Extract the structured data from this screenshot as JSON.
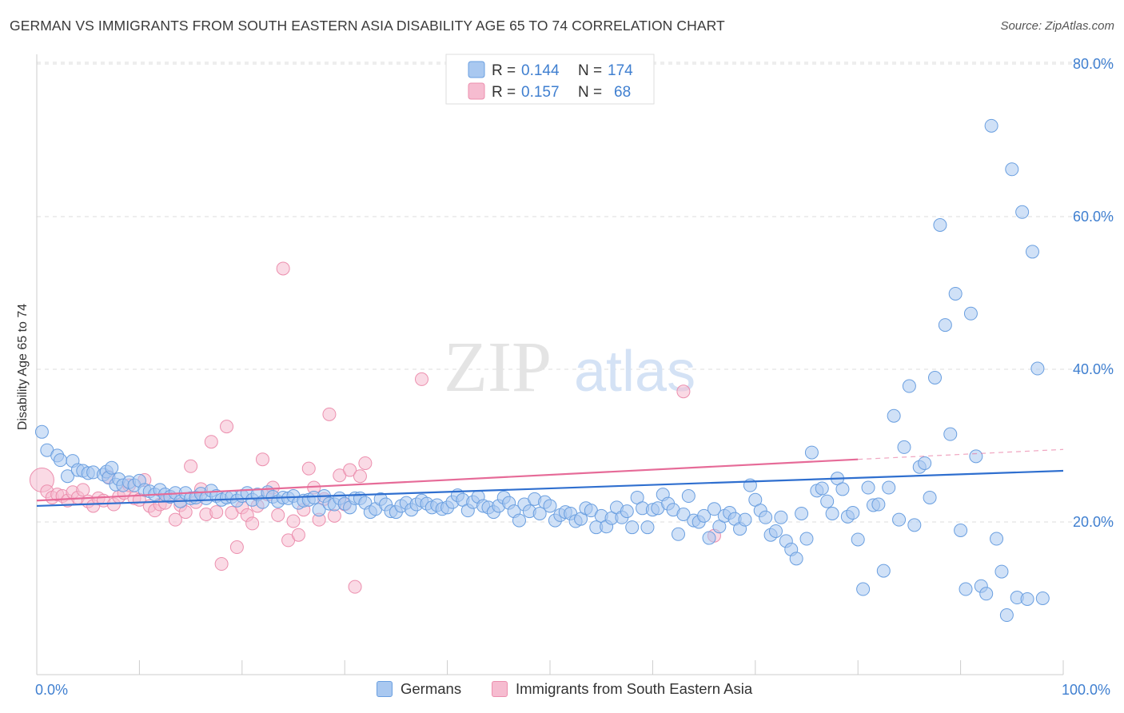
{
  "title": "GERMAN VS IMMIGRANTS FROM SOUTH EASTERN ASIA DISABILITY AGE 65 TO 74 CORRELATION CHART",
  "source": "Source: ZipAtlas.com",
  "watermark": {
    "zip": "ZIP",
    "atlas": "atlas"
  },
  "colors": {
    "blue_fill": "#a9c8f0",
    "blue_stroke": "#6a9fe0",
    "blue_line": "#2f6fcf",
    "pink_fill": "#f6bcd0",
    "pink_stroke": "#ec8fae",
    "pink_line": "#e66b98",
    "axis_label": "#3f7fd0",
    "grid": "#dddddd"
  },
  "legend": {
    "rows": [
      {
        "r_label": "R =",
        "r_value": "0.144",
        "n_label": "N =",
        "n_value": "174"
      },
      {
        "r_label": "R =",
        "r_value": "0.157",
        "n_label": "N =",
        "n_value": "68"
      }
    ]
  },
  "chart_data": {
    "type": "scatter",
    "title": "GERMAN VS IMMIGRANTS FROM SOUTH EASTERN ASIA DISABILITY AGE 65 TO 74 CORRELATION CHART",
    "xlabel": "",
    "ylabel": "Disability Age 65 to 74",
    "xlim": [
      0,
      100
    ],
    "ylim": [
      0,
      80
    ],
    "x_tick_labels": [
      "0.0%",
      "100.0%"
    ],
    "y_ticks": [
      20,
      40,
      60,
      80
    ],
    "y_tick_labels": [
      "20.0%",
      "40.0%",
      "60.0%",
      "80.0%"
    ],
    "grid": true,
    "legend_position": "top-center",
    "series": [
      {
        "name": "Germans",
        "r": 0.144,
        "n": 174,
        "trend": {
          "x": [
            0,
            100
          ],
          "y": [
            22.1,
            26.7
          ]
        },
        "points": [
          [
            0.5,
            31.8
          ],
          [
            1,
            29.4
          ],
          [
            2,
            28.7
          ],
          [
            2.3,
            28.1
          ],
          [
            3,
            26
          ],
          [
            3.5,
            28
          ],
          [
            4,
            26.8
          ],
          [
            4.5,
            26.7
          ],
          [
            5,
            26.4
          ],
          [
            5.5,
            26.5
          ],
          [
            6.5,
            26.2
          ],
          [
            6.8,
            26.6
          ],
          [
            7,
            25.8
          ],
          [
            7.3,
            27.1
          ],
          [
            7.7,
            24.9
          ],
          [
            8,
            25.6
          ],
          [
            8.4,
            24.8
          ],
          [
            9,
            25.2
          ],
          [
            9.5,
            24.8
          ],
          [
            10,
            25.4
          ],
          [
            10.5,
            24.2
          ],
          [
            11,
            24
          ],
          [
            11.5,
            23.6
          ],
          [
            12,
            24.2
          ],
          [
            12.5,
            23.6
          ],
          [
            13,
            23.3
          ],
          [
            13.5,
            23.8
          ],
          [
            14,
            22.7
          ],
          [
            14.5,
            23.8
          ],
          [
            15,
            23.1
          ],
          [
            15.5,
            23.2
          ],
          [
            16,
            23.7
          ],
          [
            16.5,
            23.1
          ],
          [
            17,
            24.1
          ],
          [
            17.5,
            23.4
          ],
          [
            18,
            22.9
          ],
          [
            18.5,
            23.2
          ],
          [
            19,
            23.3
          ],
          [
            19.5,
            22.8
          ],
          [
            20,
            23.4
          ],
          [
            20.5,
            23.8
          ],
          [
            21,
            22.9
          ],
          [
            21.5,
            23.6
          ],
          [
            22,
            22.6
          ],
          [
            22.5,
            23.9
          ],
          [
            23,
            23.3
          ],
          [
            23.5,
            22.7
          ],
          [
            24,
            23.2
          ],
          [
            24.5,
            23.1
          ],
          [
            25,
            23.4
          ],
          [
            25.5,
            22.5
          ],
          [
            26,
            22.8
          ],
          [
            26.5,
            22.9
          ],
          [
            27,
            23.2
          ],
          [
            27.5,
            21.6
          ],
          [
            28,
            23.4
          ],
          [
            28.5,
            22.4
          ],
          [
            29,
            22.3
          ],
          [
            29.5,
            23.1
          ],
          [
            30,
            22.4
          ],
          [
            30.5,
            21.9
          ],
          [
            31,
            23.1
          ],
          [
            31.5,
            23.1
          ],
          [
            32,
            22.5
          ],
          [
            32.5,
            21.3
          ],
          [
            33,
            21.7
          ],
          [
            33.5,
            23
          ],
          [
            34,
            22.3
          ],
          [
            34.5,
            21.4
          ],
          [
            35,
            21.3
          ],
          [
            35.5,
            22.1
          ],
          [
            36,
            22.5
          ],
          [
            36.5,
            21.6
          ],
          [
            37,
            22.3
          ],
          [
            37.5,
            22.8
          ],
          [
            38,
            22.4
          ],
          [
            38.5,
            21.9
          ],
          [
            39,
            22.2
          ],
          [
            39.5,
            21.7
          ],
          [
            40,
            21.9
          ],
          [
            40.5,
            22.6
          ],
          [
            41,
            23.5
          ],
          [
            41.5,
            22.9
          ],
          [
            42,
            21.5
          ],
          [
            42.5,
            22.6
          ],
          [
            43,
            23.3
          ],
          [
            43.5,
            22.1
          ],
          [
            44,
            21.9
          ],
          [
            44.5,
            21.3
          ],
          [
            45,
            22.1
          ],
          [
            45.5,
            23.2
          ],
          [
            46,
            22.5
          ],
          [
            46.5,
            21.4
          ],
          [
            47,
            20.2
          ],
          [
            47.5,
            22.3
          ],
          [
            48,
            21.4
          ],
          [
            48.5,
            23
          ],
          [
            49,
            21.1
          ],
          [
            49.5,
            22.6
          ],
          [
            50,
            22.1
          ],
          [
            50.5,
            20.2
          ],
          [
            51,
            20.9
          ],
          [
            51.5,
            21.3
          ],
          [
            52,
            21.1
          ],
          [
            52.5,
            20.1
          ],
          [
            53,
            20.4
          ],
          [
            53.5,
            21.8
          ],
          [
            54,
            21.5
          ],
          [
            54.5,
            19.3
          ],
          [
            55,
            20.8
          ],
          [
            55.5,
            19.4
          ],
          [
            56,
            20.5
          ],
          [
            56.5,
            21.9
          ],
          [
            57,
            20.6
          ],
          [
            57.5,
            21.4
          ],
          [
            58,
            19.3
          ],
          [
            58.5,
            23.2
          ],
          [
            59,
            21.8
          ],
          [
            59.5,
            19.3
          ],
          [
            60,
            21.6
          ],
          [
            60.5,
            21.8
          ],
          [
            61,
            23.6
          ],
          [
            61.5,
            22.4
          ],
          [
            62,
            21.6
          ],
          [
            62.5,
            18.4
          ],
          [
            63,
            21
          ],
          [
            63.5,
            23.4
          ],
          [
            64,
            20.2
          ],
          [
            64.5,
            20
          ],
          [
            65,
            20.8
          ],
          [
            65.5,
            17.9
          ],
          [
            66,
            21.7
          ],
          [
            66.5,
            19.4
          ],
          [
            67,
            20.8
          ],
          [
            67.5,
            21.2
          ],
          [
            68,
            20.4
          ],
          [
            68.5,
            19.1
          ],
          [
            69,
            20.3
          ],
          [
            69.5,
            24.8
          ],
          [
            70,
            22.9
          ],
          [
            70.5,
            21.5
          ],
          [
            71,
            20.6
          ],
          [
            71.5,
            18.3
          ],
          [
            72,
            18.8
          ],
          [
            72.5,
            20.6
          ],
          [
            73,
            17.5
          ],
          [
            73.5,
            16.4
          ],
          [
            74,
            15.2
          ],
          [
            74.5,
            21.1
          ],
          [
            75,
            17.8
          ],
          [
            75.5,
            29.1
          ],
          [
            76,
            24.1
          ],
          [
            76.5,
            24.4
          ],
          [
            77,
            22.7
          ],
          [
            77.5,
            21.1
          ],
          [
            78,
            25.7
          ],
          [
            78.5,
            24.3
          ],
          [
            79,
            20.7
          ],
          [
            79.5,
            21.2
          ],
          [
            80,
            17.7
          ],
          [
            80.5,
            11.2
          ],
          [
            81,
            24.5
          ],
          [
            81.5,
            22.2
          ],
          [
            82,
            22.3
          ],
          [
            82.5,
            13.6
          ],
          [
            83,
            24.5
          ],
          [
            83.5,
            33.9
          ],
          [
            84,
            20.3
          ],
          [
            84.5,
            29.8
          ],
          [
            85,
            37.8
          ],
          [
            85.5,
            19.6
          ],
          [
            86,
            27.2
          ],
          [
            86.5,
            27.7
          ],
          [
            87,
            23.2
          ],
          [
            87.5,
            38.9
          ],
          [
            88,
            58.9
          ],
          [
            88.5,
            45.8
          ],
          [
            89,
            31.5
          ],
          [
            89.5,
            49.9
          ],
          [
            90,
            18.9
          ],
          [
            90.5,
            11.2
          ],
          [
            91,
            47.3
          ],
          [
            91.5,
            28.6
          ],
          [
            92,
            11.6
          ],
          [
            92.5,
            10.6
          ],
          [
            93,
            71.9
          ],
          [
            93.5,
            17.8
          ],
          [
            94,
            13.5
          ],
          [
            94.5,
            7.8
          ],
          [
            95,
            66.2
          ],
          [
            95.5,
            10.1
          ],
          [
            96,
            60.6
          ],
          [
            96.5,
            9.9
          ],
          [
            97,
            55.4
          ],
          [
            97.5,
            40.1
          ],
          [
            98,
            10
          ]
        ]
      },
      {
        "name": "Immigrants from South Eastern Asia",
        "r": 0.157,
        "n": 68,
        "trend": {
          "x": [
            0,
            80
          ],
          "y": [
            22.8,
            28.2
          ]
        },
        "dashed_extension": {
          "x": [
            80,
            100
          ],
          "y": [
            28.2,
            29.5
          ]
        },
        "points": [
          [
            0.5,
            25.5
          ],
          [
            1,
            24
          ],
          [
            1.5,
            23.2
          ],
          [
            2,
            23.6
          ],
          [
            2.5,
            23.4
          ],
          [
            3,
            22.8
          ],
          [
            3.5,
            23.9
          ],
          [
            4,
            23.2
          ],
          [
            4.5,
            24.2
          ],
          [
            5,
            22.7
          ],
          [
            5.5,
            22.1
          ],
          [
            6,
            23.1
          ],
          [
            6.5,
            22.8
          ],
          [
            7,
            25.9
          ],
          [
            7.5,
            22.3
          ],
          [
            8,
            23.3
          ],
          [
            8.5,
            23.8
          ],
          [
            9,
            24.8
          ],
          [
            9.5,
            23.1
          ],
          [
            10,
            22.9
          ],
          [
            10.5,
            25.5
          ],
          [
            11,
            22.1
          ],
          [
            11.5,
            21.5
          ],
          [
            12,
            22.3
          ],
          [
            12.5,
            22.5
          ],
          [
            13,
            23.3
          ],
          [
            13.5,
            20.3
          ],
          [
            14,
            22.2
          ],
          [
            14.5,
            21.3
          ],
          [
            15,
            27.3
          ],
          [
            15.5,
            22.6
          ],
          [
            16,
            24.3
          ],
          [
            16.5,
            21
          ],
          [
            17,
            30.5
          ],
          [
            17.5,
            21.3
          ],
          [
            18,
            14.5
          ],
          [
            18.5,
            32.5
          ],
          [
            19,
            21.2
          ],
          [
            19.5,
            16.7
          ],
          [
            20,
            21.9
          ],
          [
            20.5,
            20.9
          ],
          [
            21,
            19.8
          ],
          [
            21.5,
            22.1
          ],
          [
            22,
            28.2
          ],
          [
            22.5,
            23.6
          ],
          [
            23,
            24.5
          ],
          [
            23.5,
            20.9
          ],
          [
            24,
            53.2
          ],
          [
            24.5,
            17.6
          ],
          [
            25,
            20.1
          ],
          [
            25.5,
            18.3
          ],
          [
            26,
            21.6
          ],
          [
            26.5,
            27
          ],
          [
            27,
            24.5
          ],
          [
            27.5,
            20.3
          ],
          [
            28,
            23
          ],
          [
            28.5,
            34.1
          ],
          [
            29,
            20.8
          ],
          [
            29.5,
            26.1
          ],
          [
            30,
            22.3
          ],
          [
            30.5,
            26.8
          ],
          [
            31,
            11.5
          ],
          [
            31.5,
            26
          ],
          [
            32,
            27.7
          ],
          [
            37.5,
            38.7
          ],
          [
            63,
            37.1
          ],
          [
            66,
            18.2
          ]
        ]
      }
    ]
  },
  "bottom_legend": {
    "series1": "Germans",
    "series2": "Immigrants from South Eastern Asia"
  }
}
